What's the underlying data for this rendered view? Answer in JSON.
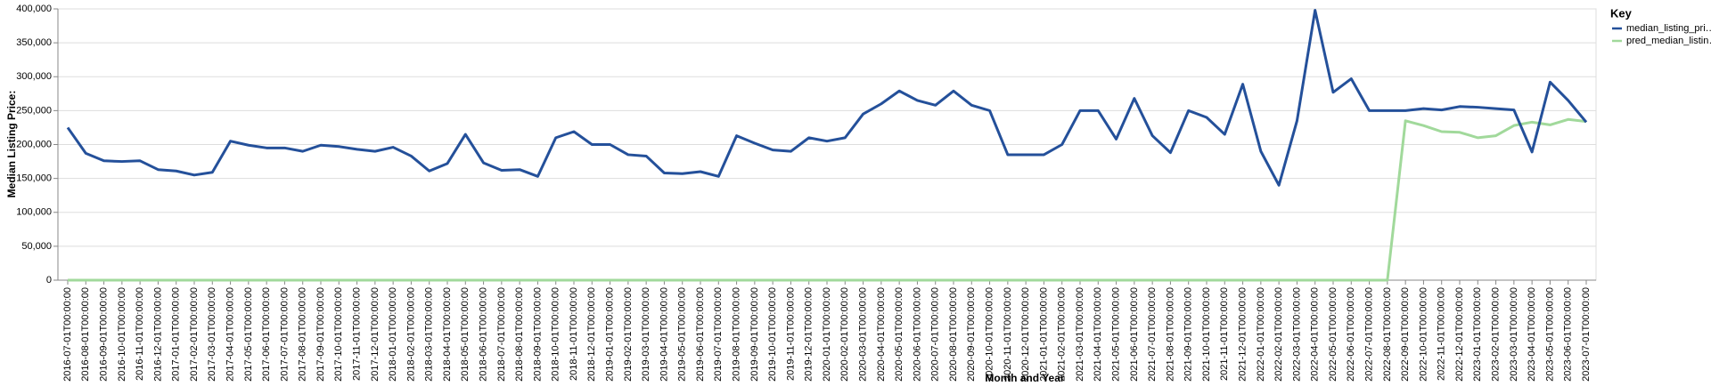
{
  "chart_data": {
    "type": "line",
    "x_label": "Month and Year",
    "y_label": "Median Listing Price:",
    "legend_title": "Key",
    "legend_position": "right",
    "grid": true,
    "categories": [
      "2016-07-01T00:00:00",
      "2016-08-01T00:00:00",
      "2016-09-01T00:00:00",
      "2016-10-01T00:00:00",
      "2016-11-01T00:00:00",
      "2016-12-01T00:00:00",
      "2017-01-01T00:00:00",
      "2017-02-01T00:00:00",
      "2017-03-01T00:00:00",
      "2017-04-01T00:00:00",
      "2017-05-01T00:00:00",
      "2017-06-01T00:00:00",
      "2017-07-01T00:00:00",
      "2017-08-01T00:00:00",
      "2017-09-01T00:00:00",
      "2017-10-01T00:00:00",
      "2017-11-01T00:00:00",
      "2017-12-01T00:00:00",
      "2018-01-01T00:00:00",
      "2018-02-01T00:00:00",
      "2018-03-01T00:00:00",
      "2018-04-01T00:00:00",
      "2018-05-01T00:00:00",
      "2018-06-01T00:00:00",
      "2018-07-01T00:00:00",
      "2018-08-01T00:00:00",
      "2018-09-01T00:00:00",
      "2018-10-01T00:00:00",
      "2018-11-01T00:00:00",
      "2018-12-01T00:00:00",
      "2019-01-01T00:00:00",
      "2019-02-01T00:00:00",
      "2019-03-01T00:00:00",
      "2019-04-01T00:00:00",
      "2019-05-01T00:00:00",
      "2019-06-01T00:00:00",
      "2019-07-01T00:00:00",
      "2019-08-01T00:00:00",
      "2019-09-01T00:00:00",
      "2019-10-01T00:00:00",
      "2019-11-01T00:00:00",
      "2019-12-01T00:00:00",
      "2020-01-01T00:00:00",
      "2020-02-01T00:00:00",
      "2020-03-01T00:00:00",
      "2020-04-01T00:00:00",
      "2020-05-01T00:00:00",
      "2020-06-01T00:00:00",
      "2020-07-01T00:00:00",
      "2020-08-01T00:00:00",
      "2020-09-01T00:00:00",
      "2020-10-01T00:00:00",
      "2020-11-01T00:00:00",
      "2020-12-01T00:00:00",
      "2021-01-01T00:00:00",
      "2021-02-01T00:00:00",
      "2021-03-01T00:00:00",
      "2021-04-01T00:00:00",
      "2021-05-01T00:00:00",
      "2021-06-01T00:00:00",
      "2021-07-01T00:00:00",
      "2021-08-01T00:00:00",
      "2021-09-01T00:00:00",
      "2021-10-01T00:00:00",
      "2021-11-01T00:00:00",
      "2021-12-01T00:00:00",
      "2022-01-01T00:00:00",
      "2022-02-01T00:00:00",
      "2022-03-01T00:00:00",
      "2022-04-01T00:00:00",
      "2022-05-01T00:00:00",
      "2022-06-01T00:00:00",
      "2022-07-01T00:00:00",
      "2022-08-01T00:00:00",
      "2022-09-01T00:00:00",
      "2022-10-01T00:00:00",
      "2022-11-01T00:00:00",
      "2022-12-01T00:00:00",
      "2023-01-01T00:00:00",
      "2023-02-01T00:00:00",
      "2023-03-01T00:00:00",
      "2023-04-01T00:00:00",
      "2023-05-01T00:00:00",
      "2023-06-01T00:00:00",
      "2023-07-01T00:00:00"
    ],
    "series": [
      {
        "name": "median_listing_pri…",
        "color": "#24509a",
        "values": [
          225000,
          187000,
          176000,
          175000,
          176000,
          163000,
          161000,
          155000,
          159000,
          205000,
          199000,
          195000,
          195000,
          190000,
          199000,
          197000,
          193000,
          190000,
          196000,
          183000,
          161000,
          172000,
          215000,
          173000,
          162000,
          163000,
          153000,
          210000,
          219000,
          200000,
          200000,
          185000,
          183000,
          158000,
          157000,
          160000,
          153000,
          213000,
          202000,
          192000,
          190000,
          210000,
          205000,
          210000,
          245000,
          260000,
          279000,
          265000,
          258000,
          279000,
          258000,
          250000,
          185000,
          185000,
          185000,
          200000,
          250000,
          250000,
          208000,
          268000,
          213000,
          188000,
          250000,
          240000,
          215000,
          289000,
          190000,
          140000,
          235000,
          398000,
          277000,
          297000,
          250000,
          250000,
          250000,
          253000,
          251000,
          256000,
          255000,
          253000,
          251000,
          189000,
          292000,
          265000,
          233000
        ]
      },
      {
        "name": "pred_median_listin…",
        "color": "#a1d99b",
        "values": [
          0,
          0,
          0,
          0,
          0,
          0,
          0,
          0,
          0,
          0,
          0,
          0,
          0,
          0,
          0,
          0,
          0,
          0,
          0,
          0,
          0,
          0,
          0,
          0,
          0,
          0,
          0,
          0,
          0,
          0,
          0,
          0,
          0,
          0,
          0,
          0,
          0,
          0,
          0,
          0,
          0,
          0,
          0,
          0,
          0,
          0,
          0,
          0,
          0,
          0,
          0,
          0,
          0,
          0,
          0,
          0,
          0,
          0,
          0,
          0,
          0,
          0,
          0,
          0,
          0,
          0,
          0,
          0,
          0,
          0,
          0,
          0,
          0,
          0,
          235000,
          228000,
          219000,
          218000,
          210000,
          213000,
          228000,
          233000,
          229000,
          237000,
          234000
        ]
      }
    ],
    "ylim": [
      0,
      400000
    ],
    "yticks": [
      0,
      {
        "value": 50000,
        "label": "50,000"
      },
      {
        "value": 100000,
        "label": "100,000"
      },
      {
        "value": 150000,
        "label": "150,000"
      },
      {
        "value": 200000,
        "label": "200,000"
      },
      {
        "value": 250000,
        "label": "250,000"
      },
      {
        "value": 300000,
        "label": "300,000"
      },
      {
        "value": 350000,
        "label": "350,000"
      },
      {
        "value": 400000,
        "label": "400,000"
      }
    ]
  }
}
